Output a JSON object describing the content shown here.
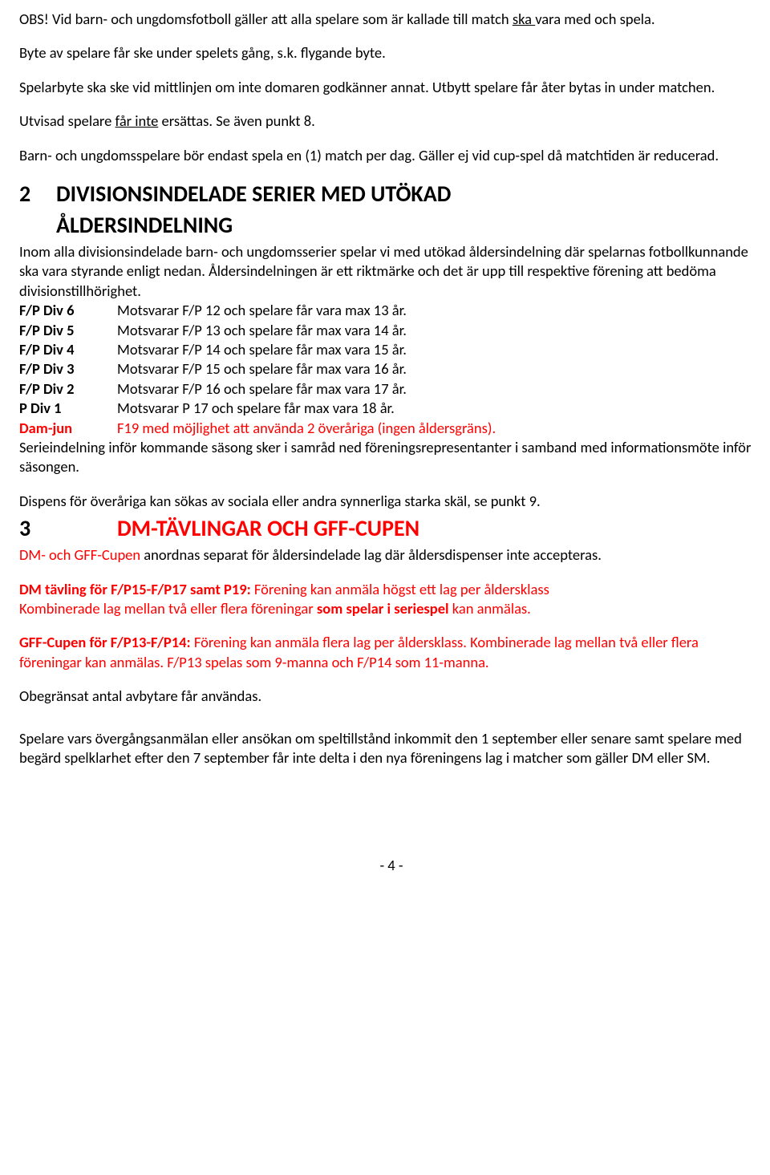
{
  "intro": {
    "p1_a": "OBS! Vid barn- och ungdomsfotboll gäller att alla spelare som är kallade till match ",
    "p1_u": "ska ",
    "p1_b": "vara med och spela.",
    "p2": "Byte av spelare får ske under spelets gång, s.k. flygande byte.",
    "p3": "Spelarbyte ska ske vid mittlinjen om inte domaren godkänner annat. Utbytt spelare får åter bytas in under matchen.",
    "p4_a": "Utvisad spelare ",
    "p4_u": "får inte",
    "p4_b": " ersättas. Se även punkt 8.",
    "p5": "Barn- och ungdomsspelare bör endast spela en (1) match per dag. Gäller ej vid cup-spel då matchtiden är reducerad."
  },
  "sec2": {
    "num": "2",
    "title_line1": "DIVISIONSINDELADE SERIER MED UTÖKAD",
    "title_line2": "ÅLDERSINDELNING",
    "body1": "Inom alla divisionsindelade barn- och ungdomsserier spelar vi med utökad åldersindelning där spelarnas fotbollkunnande ska vara styrande enligt nedan. Åldersindelningen är ett riktmärke och det är upp till respektive förening att bedöma divisionstillhörighet.",
    "rows": [
      {
        "label": "F/P Div 6",
        "desc": "Motsvarar F/P 12 och spelare får vara max 13 år.",
        "red": false
      },
      {
        "label": "F/P Div 5",
        "desc": "Motsvarar F/P 13 och spelare får max vara 14 år.",
        "red": false
      },
      {
        "label": "F/P Div 4",
        "desc": "Motsvarar F/P 14 och spelare får max vara 15 år.",
        "red": false
      },
      {
        "label": "F/P Div 3",
        "desc": "Motsvarar F/P 15 och spelare får max vara 16 år.",
        "red": false
      },
      {
        "label": "F/P Div 2",
        "desc": "Motsvarar F/P 16 och spelare får max vara 17 år.",
        "red": false
      },
      {
        "label": "P Div 1",
        "desc": "Motsvarar P 17 och spelare får max vara 18 år.",
        "red": false
      },
      {
        "label": "Dam-jun",
        "desc": "F19 med möjlighet att använda 2 överåriga (ingen åldersgräns).",
        "red": true
      }
    ],
    "body2": "Serieindelning inför kommande säsong sker i samråd ned föreningsrepresentanter i samband med informationsmöte inför säsongen.",
    "body3": "Dispens för överåriga kan sökas av sociala eller andra synnerliga starka skäl, se punkt 9."
  },
  "sec3": {
    "num": "3",
    "title": "DM-TÄVLINGAR OCH GFF-CUPEN",
    "p1_a": "DM- och GFF-Cupen",
    "p1_b": " anordnas separat för åldersindelade lag där åldersdispenser inte accepteras.",
    "p2_a": "DM tävling för F/P15-F/P17 samt P19: ",
    "p2_b": "Förening kan anmäla högst ett lag per åldersklass",
    "p2_c": "Kombinerade lag mellan två eller flera föreningar ",
    "p2_c_bold": "som spelar i seriespel",
    "p2_c_end": " kan anmälas.",
    "p3_a": "GFF-Cupen för F/P13-F/P14: ",
    "p3_b": "Förening kan anmäla flera lag per åldersklass. Kombinerade lag mellan två eller flera föreningar kan anmälas. F/P13 spelas som 9-manna och F/P14 som 11-manna.",
    "p4": "Obegränsat antal avbytare får användas.",
    "p5": "Spelare vars övergångsanmälan eller ansökan om speltillstånd inkommit den 1 september eller senare samt spelare med begärd spelklarhet efter den 7 september får inte delta i den nya föreningens lag i matcher som gäller DM eller SM."
  },
  "footer": "- 4 -"
}
